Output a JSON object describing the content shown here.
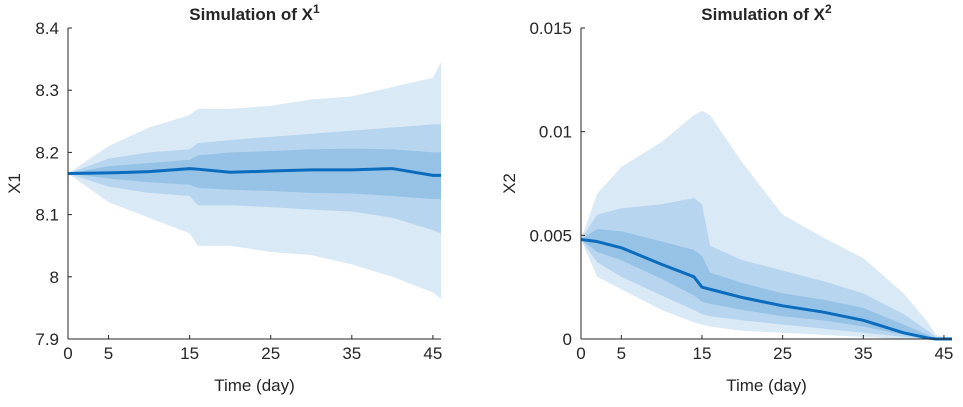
{
  "chart_data": [
    {
      "type": "area",
      "title": "Simulation of X",
      "title_sup": "1",
      "xlabel": "Time (day)",
      "ylabel": "X1",
      "xlim": [
        0,
        46
      ],
      "ylim": [
        7.9,
        8.4
      ],
      "xticks": [
        0,
        5,
        15,
        25,
        35,
        45
      ],
      "yticks": [
        7.9,
        8,
        8.1,
        8.2,
        8.3,
        8.4
      ],
      "ytick_labels": [
        "7.9",
        "8",
        "8.1",
        "8.2",
        "8.3",
        "8.4"
      ],
      "colors": {
        "band_outer": "#d9e9f5",
        "band_middle": "#b7d5ee",
        "band_inner": "#96c2e6",
        "median": "#0b6cbd"
      },
      "x": [
        0,
        5,
        10,
        15,
        16,
        20,
        25,
        30,
        35,
        40,
        45,
        46
      ],
      "median": [
        8.166,
        8.167,
        8.169,
        8.174,
        8.173,
        8.168,
        8.17,
        8.172,
        8.172,
        8.174,
        8.163,
        8.163
      ],
      "bands": [
        {
          "lower": [
            8.166,
            8.12,
            8.095,
            8.07,
            8.05,
            8.05,
            8.04,
            8.035,
            8.02,
            8.0,
            7.975,
            7.965
          ],
          "upper": [
            8.166,
            8.21,
            8.24,
            8.26,
            8.27,
            8.27,
            8.275,
            8.285,
            8.29,
            8.305,
            8.32,
            8.345
          ]
        },
        {
          "lower": [
            8.166,
            8.145,
            8.135,
            8.13,
            8.115,
            8.115,
            8.112,
            8.108,
            8.105,
            8.095,
            8.075,
            8.07
          ],
          "upper": [
            8.166,
            8.19,
            8.2,
            8.205,
            8.215,
            8.22,
            8.225,
            8.23,
            8.235,
            8.24,
            8.245,
            8.245
          ]
        },
        {
          "lower": [
            8.166,
            8.158,
            8.152,
            8.148,
            8.143,
            8.14,
            8.138,
            8.135,
            8.134,
            8.13,
            8.125,
            8.125
          ],
          "upper": [
            8.166,
            8.178,
            8.183,
            8.188,
            8.195,
            8.2,
            8.202,
            8.205,
            8.206,
            8.205,
            8.2,
            8.2
          ]
        }
      ]
    },
    {
      "type": "area",
      "title": "Simulation of X",
      "title_sup": "2",
      "xlabel": "Time (day)",
      "ylabel": "X2",
      "xlim": [
        0,
        46
      ],
      "ylim": [
        0,
        0.015
      ],
      "xticks": [
        0,
        5,
        15,
        25,
        35,
        45
      ],
      "yticks": [
        0,
        0.005,
        0.01,
        0.015
      ],
      "ytick_labels": [
        "0",
        "0.005",
        "0.01",
        "0.015"
      ],
      "colors": {
        "band_outer": "#d9e9f5",
        "band_middle": "#b7d5ee",
        "band_inner": "#96c2e6",
        "median": "#0b6cbd"
      },
      "x": [
        0,
        2,
        5,
        10,
        14,
        15,
        16,
        20,
        25,
        30,
        35,
        40,
        43,
        44,
        45,
        46
      ],
      "median": [
        0.0048,
        0.0047,
        0.0044,
        0.0036,
        0.003,
        0.0025,
        0.0024,
        0.002,
        0.0016,
        0.0013,
        0.0009,
        0.0003,
        5e-05,
        0.0,
        0.0,
        0.0
      ],
      "bands": [
        {
          "lower": [
            0.0048,
            0.003,
            0.0024,
            0.0014,
            0.0008,
            0.0007,
            0.0006,
            0.0004,
            0.0003,
            0.0002,
            0.0001,
            0.0,
            0.0,
            0.0,
            0.0,
            0.0
          ],
          "upper": [
            0.0048,
            0.007,
            0.0083,
            0.0095,
            0.0108,
            0.011,
            0.0108,
            0.0085,
            0.006,
            0.0049,
            0.0039,
            0.0022,
            0.0008,
            0.0002,
            0.0001,
            0.0001
          ]
        },
        {
          "lower": [
            0.0048,
            0.0037,
            0.003,
            0.0021,
            0.0014,
            0.0012,
            0.0011,
            0.0009,
            0.0007,
            0.0005,
            0.0003,
            0.0001,
            0.0,
            0.0,
            0.0,
            0.0
          ],
          "upper": [
            0.0048,
            0.006,
            0.0063,
            0.0065,
            0.0068,
            0.0065,
            0.0045,
            0.0038,
            0.0033,
            0.0028,
            0.0022,
            0.0012,
            0.0004,
            0.0001,
            0.0,
            0.0
          ]
        },
        {
          "lower": [
            0.0048,
            0.0042,
            0.0038,
            0.0029,
            0.0021,
            0.0018,
            0.0017,
            0.0014,
            0.0011,
            0.0009,
            0.0006,
            0.0002,
            0.0,
            0.0,
            0.0,
            0.0
          ],
          "upper": [
            0.0048,
            0.0053,
            0.0052,
            0.0047,
            0.0043,
            0.004,
            0.0032,
            0.0027,
            0.0022,
            0.0019,
            0.0015,
            0.0007,
            0.0002,
            0.0,
            0.0,
            0.0
          ]
        }
      ]
    }
  ]
}
